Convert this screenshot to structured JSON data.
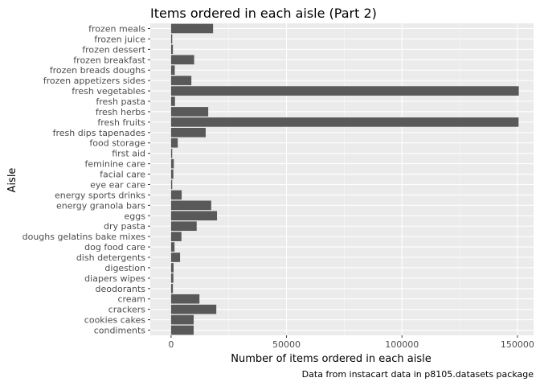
{
  "chart_data": {
    "type": "bar",
    "orientation": "horizontal",
    "title": "Items ordered in each aisle (Part 2)",
    "xlabel": "Number of items ordered in each aisle",
    "ylabel": "Aisle",
    "caption": "Data from instacart data in p8105.datasets package",
    "xlim": [
      -9000,
      157000
    ],
    "xticks": [
      0,
      50000,
      100000,
      150000
    ],
    "xtick_labels": [
      "0",
      "50000",
      "100000",
      "150000"
    ],
    "grid": true,
    "bar_color": "#595959",
    "panel_color": "#ebebeb",
    "categories": [
      "condiments",
      "cookies cakes",
      "crackers",
      "cream",
      "deodorants",
      "diapers wipes",
      "digestion",
      "dish detergents",
      "dog food care",
      "doughs gelatins bake mixes",
      "dry pasta",
      "eggs",
      "energy granola bars",
      "energy sports drinks",
      "eye ear care",
      "facial care",
      "feminine care",
      "first aid",
      "food storage",
      "fresh dips tapenades",
      "fresh fruits",
      "fresh herbs",
      "fresh pasta",
      "fresh vegetables",
      "frozen appetizers sides",
      "frozen breads doughs",
      "frozen breakfast",
      "frozen dessert",
      "frozen juice",
      "frozen meals"
    ],
    "values": [
      9800,
      9800,
      19600,
      12300,
      800,
      1000,
      1100,
      3900,
      1500,
      4500,
      11100,
      19900,
      17400,
      4600,
      500,
      1000,
      1200,
      500,
      2900,
      15000,
      150500,
      16100,
      1700,
      150600,
      8800,
      1600,
      10000,
      800,
      500,
      18200
    ]
  }
}
